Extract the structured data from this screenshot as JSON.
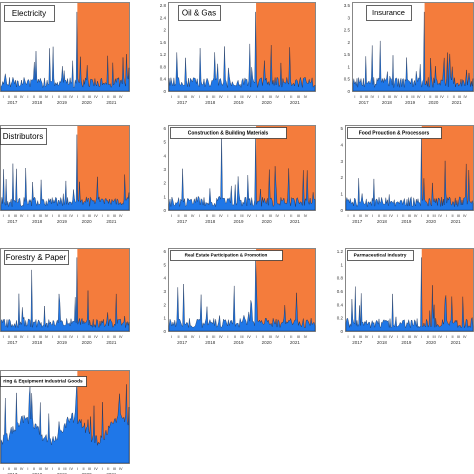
{
  "chart_data": [
    {
      "type": "area",
      "title": "Electricity",
      "yticks": [],
      "xyears": [
        "2017",
        "2018",
        "2019",
        "2020",
        "2021"
      ],
      "quarters": [
        "I",
        "II",
        "III",
        "IV"
      ],
      "shaded_from": "2020-I",
      "ylim": [
        0,
        3
      ],
      "colors": {
        "fill": "#1f77e8",
        "shade": "#f47c3c"
      },
      "values": []
    },
    {
      "type": "area",
      "title": "Oil & Gas",
      "yticks": [
        "0",
        "0.4",
        "0.8",
        "1.2",
        "1.6",
        "2",
        "2.4",
        "2.8"
      ],
      "xyears": [
        "2017",
        "2018",
        "2019",
        "2020",
        "2021"
      ],
      "quarters": [
        "I",
        "II",
        "III",
        "IV"
      ],
      "shaded_from": "2020-I",
      "ylim": [
        0,
        2.8
      ],
      "colors": {
        "fill": "#1f77e8",
        "shade": "#f47c3c"
      },
      "values": []
    },
    {
      "type": "area",
      "title": "Insurance",
      "yticks": [
        "0",
        "0.5",
        "1",
        "1.5",
        "2",
        "2.5",
        "3",
        "3.5"
      ],
      "xyears": [
        "2017",
        "2018",
        "2019",
        "2020",
        "2021"
      ],
      "quarters": [
        "I",
        "II",
        "III",
        "IV"
      ],
      "shaded_from": "2020-I",
      "ylim": [
        0,
        3.5
      ],
      "colors": {
        "fill": "#1f77e8",
        "shade": "#f47c3c"
      },
      "values": []
    },
    {
      "type": "area",
      "title": "Distributors",
      "yticks": [],
      "xyears": [
        "2017",
        "2018",
        "2019",
        "2020",
        "2021"
      ],
      "quarters": [
        "I",
        "II",
        "III",
        "IV"
      ],
      "shaded_from": "2020-I",
      "ylim": [
        0,
        3
      ],
      "colors": {
        "fill": "#1f77e8",
        "shade": "#f47c3c"
      },
      "values": []
    },
    {
      "type": "area",
      "title": "Construction & Building Materials",
      "yticks": [
        "0",
        "1",
        "2",
        "3",
        "4",
        "5",
        "6"
      ],
      "xyears": [
        "2017",
        "2018",
        "2019",
        "2020",
        "2021"
      ],
      "quarters": [
        "I",
        "II",
        "III",
        "IV"
      ],
      "shaded_from": "2020-I",
      "ylim": [
        0,
        6
      ],
      "colors": {
        "fill": "#1f77e8",
        "shade": "#f47c3c"
      },
      "values": []
    },
    {
      "type": "area",
      "title": "Food Prouction & Processors",
      "yticks": [
        "0",
        "1",
        "2",
        "3",
        "4",
        "5"
      ],
      "xyears": [
        "2017",
        "2018",
        "2019",
        "2020",
        "2021"
      ],
      "quarters": [
        "I",
        "II",
        "III",
        "IV"
      ],
      "shaded_from": "2020-I",
      "ylim": [
        0,
        5
      ],
      "colors": {
        "fill": "#1f77e8",
        "shade": "#f47c3c"
      },
      "values": []
    },
    {
      "type": "area",
      "title": "Forestry & Paper",
      "yticks": [],
      "xyears": [
        "2017",
        "2018",
        "2019",
        "2020",
        "2021"
      ],
      "quarters": [
        "I",
        "II",
        "III",
        "IV"
      ],
      "shaded_from": "2020-I",
      "ylim": [
        0,
        6
      ],
      "colors": {
        "fill": "#1f77e8",
        "shade": "#f47c3c"
      },
      "values": []
    },
    {
      "type": "area",
      "title": "Real Estate Participation & Promotion",
      "yticks": [
        "0",
        "1",
        "2",
        "3",
        "4",
        "5",
        "6"
      ],
      "xyears": [
        "2017",
        "2018",
        "2019",
        "2020",
        "2021"
      ],
      "quarters": [
        "I",
        "II",
        "III",
        "IV"
      ],
      "shaded_from": "2020-I",
      "ylim": [
        0,
        6
      ],
      "colors": {
        "fill": "#1f77e8",
        "shade": "#f47c3c"
      },
      "values": []
    },
    {
      "type": "area",
      "title": "Parmaceutical Industry",
      "yticks": [
        "0",
        "0.2",
        "0.4",
        "0.6",
        "0.8",
        "1",
        "1.2"
      ],
      "xyears": [
        "2017",
        "2018",
        "2019",
        "2020",
        "2021"
      ],
      "quarters": [
        "I",
        "II",
        "III",
        "IV"
      ],
      "shaded_from": "2020-I",
      "ylim": [
        0,
        1.2
      ],
      "colors": {
        "fill": "#1f77e8",
        "shade": "#f47c3c"
      },
      "values": []
    },
    {
      "type": "area",
      "title": "ring & Equipment Industrial Goods",
      "yticks": [],
      "xyears": [
        "2017",
        "2018",
        "2019",
        "2020",
        "2021"
      ],
      "quarters": [
        "I",
        "II",
        "III",
        "IV"
      ],
      "shaded_from": "2020-I",
      "ylim": [
        0,
        3
      ],
      "colors": {
        "fill": "#1f77e8",
        "shade": "#f47c3c"
      },
      "values": []
    }
  ]
}
